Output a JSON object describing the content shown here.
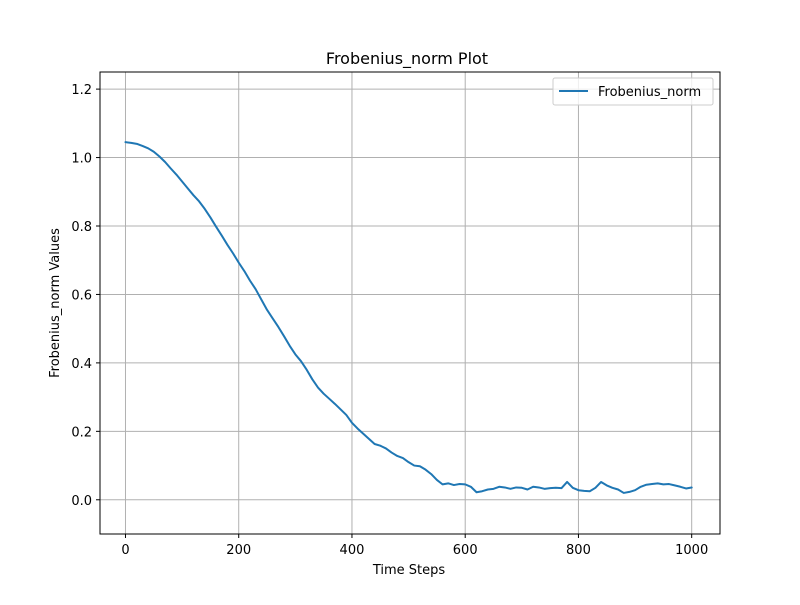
{
  "chart_data": {
    "type": "line",
    "title": "Frobenius_norm Plot",
    "xlabel": "Time Steps",
    "ylabel": "Frobenius_norm Values",
    "xlim": [
      -45,
      1050
    ],
    "ylim": [
      -0.1,
      1.25
    ],
    "xticks": [
      0,
      200,
      400,
      600,
      800,
      1000
    ],
    "xtick_labels": [
      "0",
      "200",
      "400",
      "600",
      "800",
      "1000"
    ],
    "yticks": [
      0.0,
      0.2,
      0.4,
      0.6,
      0.8,
      1.0,
      1.2
    ],
    "ytick_labels": [
      "0.0",
      "0.2",
      "0.4",
      "0.6",
      "0.8",
      "1.0",
      "1.2"
    ],
    "grid": true,
    "legend": {
      "position": "top-right",
      "entries": [
        "Frobenius_norm"
      ]
    },
    "series": [
      {
        "name": "Frobenius_norm",
        "color": "#1f77b4",
        "x": [
          0,
          10,
          20,
          30,
          40,
          50,
          60,
          70,
          80,
          90,
          100,
          110,
          120,
          130,
          140,
          150,
          160,
          170,
          180,
          190,
          200,
          210,
          220,
          230,
          240,
          250,
          260,
          270,
          280,
          290,
          300,
          310,
          320,
          330,
          340,
          350,
          360,
          370,
          380,
          390,
          400,
          410,
          420,
          430,
          440,
          450,
          460,
          470,
          480,
          490,
          500,
          510,
          520,
          530,
          540,
          550,
          560,
          570,
          580,
          590,
          600,
          610,
          620,
          630,
          640,
          650,
          660,
          670,
          680,
          690,
          700,
          710,
          720,
          730,
          740,
          750,
          760,
          770,
          780,
          790,
          800,
          810,
          820,
          830,
          840,
          850,
          860,
          870,
          880,
          890,
          900,
          910,
          920,
          930,
          940,
          950,
          960,
          970,
          980,
          990,
          1000
        ],
        "y": [
          1.045,
          1.043,
          1.04,
          1.034,
          1.027,
          1.017,
          1.003,
          0.987,
          0.968,
          0.95,
          0.93,
          0.91,
          0.89,
          0.872,
          0.85,
          0.825,
          0.798,
          0.772,
          0.745,
          0.72,
          0.693,
          0.668,
          0.64,
          0.615,
          0.585,
          0.555,
          0.53,
          0.505,
          0.478,
          0.45,
          0.425,
          0.405,
          0.38,
          0.352,
          0.328,
          0.31,
          0.295,
          0.28,
          0.264,
          0.248,
          0.225,
          0.208,
          0.193,
          0.178,
          0.163,
          0.158,
          0.15,
          0.138,
          0.128,
          0.122,
          0.11,
          0.1,
          0.098,
          0.088,
          0.075,
          0.058,
          0.045,
          0.048,
          0.043,
          0.046,
          0.045,
          0.038,
          0.022,
          0.025,
          0.03,
          0.032,
          0.038,
          0.036,
          0.032,
          0.036,
          0.035,
          0.03,
          0.038,
          0.036,
          0.032,
          0.034,
          0.035,
          0.034,
          0.052,
          0.035,
          0.028,
          0.026,
          0.025,
          0.035,
          0.052,
          0.042,
          0.035,
          0.03,
          0.02,
          0.023,
          0.028,
          0.038,
          0.044,
          0.046,
          0.048,
          0.045,
          0.046,
          0.042,
          0.038,
          0.033,
          0.036
        ]
      }
    ]
  }
}
